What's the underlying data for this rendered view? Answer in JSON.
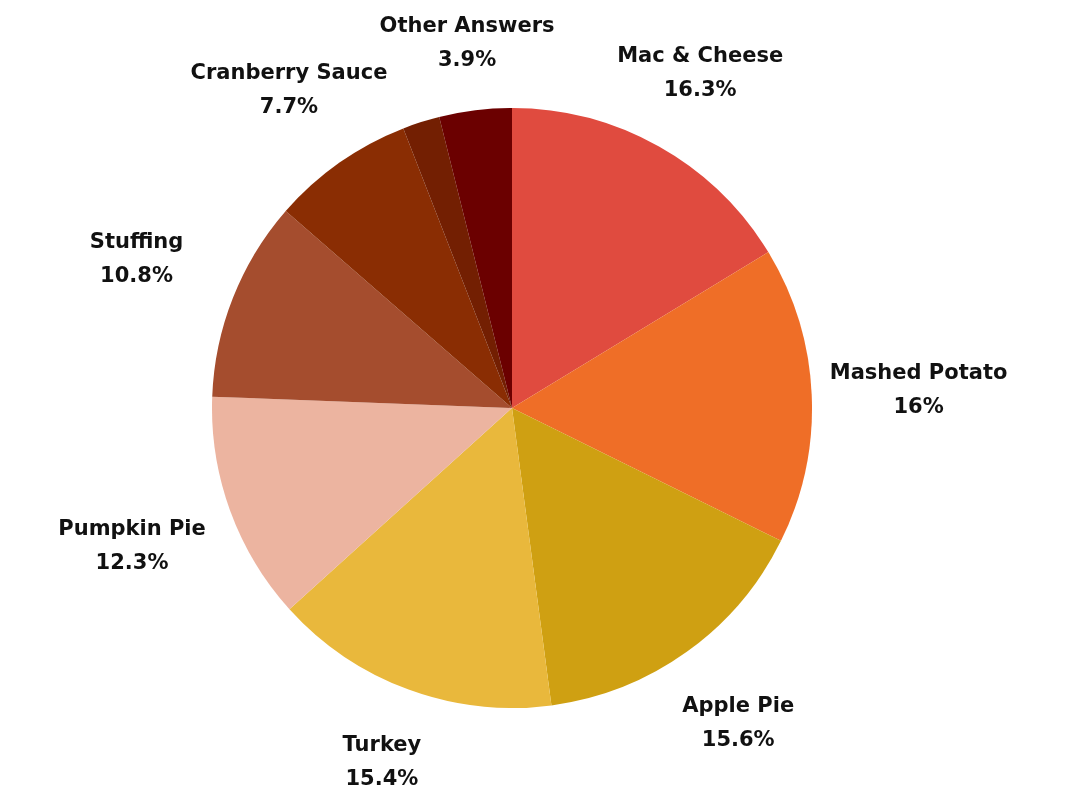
{
  "chart_data": {
    "type": "pie",
    "categories": [
      "Mac & Cheese",
      "Mashed Potato",
      "Apple Pie",
      "Turkey",
      "Pumpkin Pie",
      "Stuffing",
      "Cranberry Sauce",
      null,
      "Other Answers"
    ],
    "values": [
      16.3,
      16,
      15.6,
      15.4,
      12.3,
      10.8,
      7.7,
      2,
      3.9
    ],
    "colors": [
      "#e04b3f",
      "#ef6e27",
      "#cfa012",
      "#e9b83c",
      "#ecb4a0",
      "#a54d2e",
      "#8a2d03",
      "#731f02",
      "#6b0000"
    ],
    "value_labels": [
      "16.3%",
      "16%",
      "15.6%",
      "15.4%",
      "12.3%",
      "10.8%",
      "7.7%",
      null,
      "3.9%"
    ],
    "legend": false
  }
}
